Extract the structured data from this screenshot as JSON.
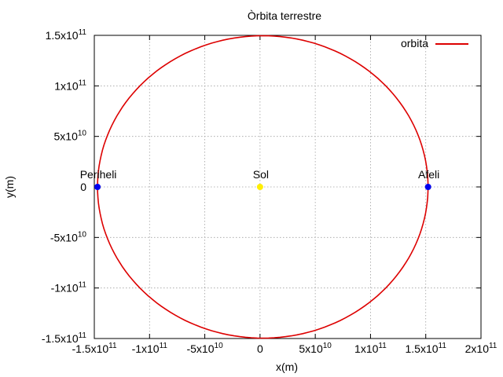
{
  "chart_data": {
    "type": "line",
    "title": "Òrbita terrestre",
    "xlabel": "x(m)",
    "ylabel": "y(m)",
    "xlim": [
      -150000000000,
      200000000000
    ],
    "ylim": [
      -150000000000,
      150000000000
    ],
    "grid": true,
    "legend": {
      "position": "top-right",
      "entries": [
        "orbita"
      ]
    },
    "x_ticks": [
      {
        "value": -150000000000,
        "base": "-1.5x10",
        "exp": "11"
      },
      {
        "value": -100000000000,
        "base": "-1x10",
        "exp": "11"
      },
      {
        "value": -50000000000,
        "base": "-5x10",
        "exp": "10"
      },
      {
        "value": 0,
        "base": "0",
        "exp": ""
      },
      {
        "value": 50000000000,
        "base": "5x10",
        "exp": "10"
      },
      {
        "value": 100000000000,
        "base": "1x10",
        "exp": "11"
      },
      {
        "value": 150000000000,
        "base": "1.5x10",
        "exp": "11"
      },
      {
        "value": 200000000000,
        "base": "2x10",
        "exp": "11"
      }
    ],
    "y_ticks": [
      {
        "value": 150000000000,
        "base": "1.5x10",
        "exp": "11"
      },
      {
        "value": 100000000000,
        "base": "1x10",
        "exp": "11"
      },
      {
        "value": 50000000000,
        "base": "5x10",
        "exp": "10"
      },
      {
        "value": 0,
        "base": "0",
        "exp": ""
      },
      {
        "value": -50000000000,
        "base": "-5x10",
        "exp": "10"
      },
      {
        "value": -100000000000,
        "base": "-1x10",
        "exp": "11"
      },
      {
        "value": -150000000000,
        "base": "-1.5x10",
        "exp": "11"
      }
    ],
    "series": [
      {
        "name": "orbita",
        "color": "#dd0000",
        "shape": "ellipse",
        "center": [
          2500000000,
          0
        ],
        "x_extent": [
          -147100000000,
          152100000000
        ],
        "y_extent": [
          -149600000000,
          149600000000
        ]
      }
    ],
    "points": [
      {
        "name": "Sol",
        "label": "Sol",
        "x": 0,
        "y": 0,
        "color": "#ffee00"
      },
      {
        "name": "Periheli",
        "label": "Periheli",
        "x": -147100000000,
        "y": 0,
        "color": "#0000ee"
      },
      {
        "name": "Afeli",
        "label": "Afeli",
        "x": 152100000000,
        "y": 0,
        "color": "#0000ee"
      }
    ]
  }
}
